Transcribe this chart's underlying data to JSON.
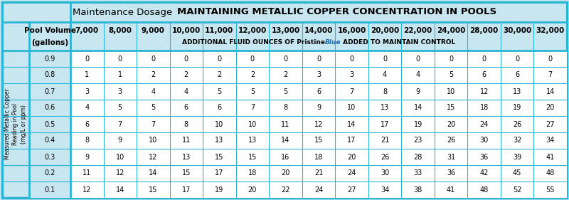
{
  "title_regular": "Maintenance Dosage ",
  "title_bold": "MAINTAINING METALLIC COPPER CONCENTRATION IN POOLS",
  "pool_volumes": [
    "7,000",
    "8,000",
    "9,000",
    "10,000",
    "11,000",
    "12,000",
    "13,000",
    "14,000",
    "16,000",
    "20,000",
    "22,000",
    "24,000",
    "28,000",
    "30,000",
    "32,000"
  ],
  "subtitle_pre": "ADDITIONAL FLUID OUNCES OF ",
  "subtitle_pristine": "Pristine",
  "subtitle_blue": "Blue",
  "subtitle_post": " ADDED TO MAINTAIN CONTROL",
  "row_labels": [
    "0.9",
    "0.8",
    "0.7",
    "0.6",
    "0.5",
    "0.4",
    "0.3",
    "0.2",
    "0.1"
  ],
  "y_axis_label": "Measured Metallic Copper\nReading in Pool\n(mg/L or ppm)",
  "col_header_line1": "Pool Volume",
  "col_header_line2": "(gallons)",
  "table_data": [
    [
      0,
      0,
      0,
      0,
      0,
      0,
      0,
      0,
      0,
      0,
      0,
      0,
      0,
      0,
      0
    ],
    [
      1,
      1,
      2,
      2,
      2,
      2,
      2,
      3,
      3,
      4,
      4,
      5,
      6,
      6,
      7
    ],
    [
      3,
      3,
      4,
      4,
      5,
      5,
      5,
      6,
      7,
      8,
      9,
      10,
      12,
      13,
      14
    ],
    [
      4,
      5,
      5,
      6,
      6,
      7,
      8,
      9,
      10,
      13,
      14,
      15,
      18,
      19,
      20
    ],
    [
      6,
      7,
      7,
      8,
      10,
      10,
      11,
      12,
      14,
      17,
      19,
      20,
      24,
      26,
      27
    ],
    [
      8,
      9,
      10,
      11,
      13,
      13,
      14,
      15,
      17,
      21,
      23,
      26,
      30,
      32,
      34
    ],
    [
      9,
      10,
      12,
      13,
      15,
      15,
      16,
      18,
      20,
      26,
      28,
      31,
      36,
      39,
      41
    ],
    [
      11,
      12,
      14,
      15,
      17,
      18,
      20,
      21,
      24,
      30,
      33,
      36,
      42,
      45,
      48
    ],
    [
      12,
      14,
      15,
      17,
      19,
      20,
      22,
      24,
      27,
      34,
      38,
      41,
      48,
      52,
      55
    ]
  ],
  "bg_color": "#c8e6f0",
  "white": "#ffffff",
  "border_color": "#2bb5d4",
  "black": "#000000",
  "blue_color": "#1a6db5",
  "title_fontsize": 9.5,
  "header_fontsize": 7.5,
  "cell_fontsize": 7.0,
  "ylabel_fontsize": 5.5
}
